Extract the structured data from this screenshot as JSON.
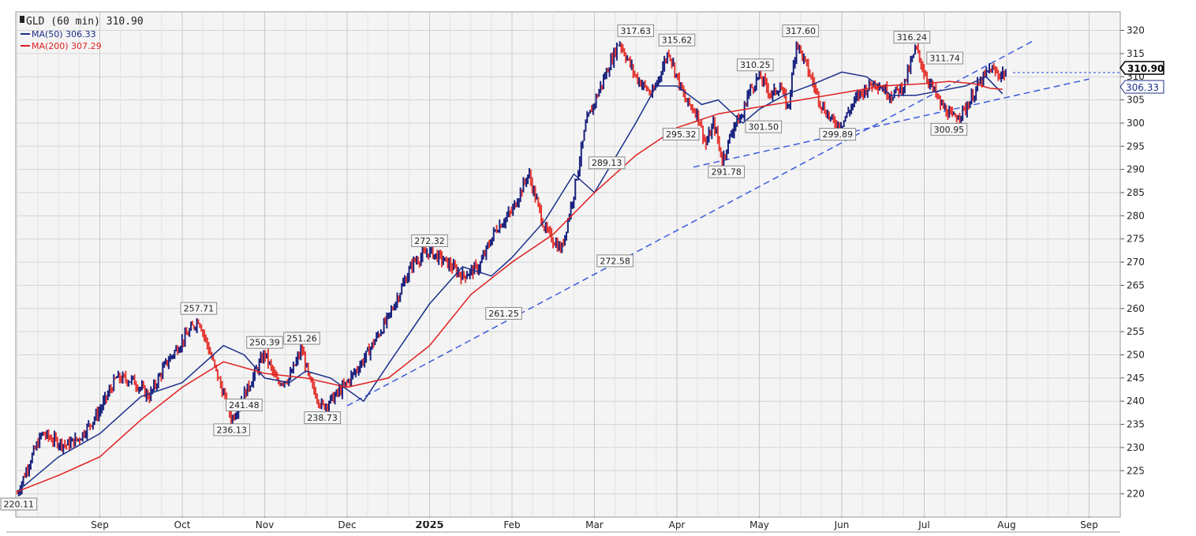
{
  "legend": {
    "title": "GLD (60 min) 310.90",
    "ma50": "MA(50) 306.33",
    "ma200": "MA(200) 307.29"
  },
  "price_box": {
    "last": "310.90",
    "ma": "306.33"
  },
  "colors": {
    "up": "#1a237e",
    "down": "#e53935",
    "ma50": "#1a2f8a",
    "ma200": "#e02020",
    "trend": "#3b5bdb",
    "grid": "#d4d4d4",
    "plot_bg": "#f4f4f4"
  },
  "chart_data": {
    "type": "line",
    "title": "GLD (60 min) 310.90",
    "ylim": [
      215,
      324
    ],
    "y_ticks": [
      220,
      225,
      230,
      235,
      240,
      245,
      250,
      255,
      260,
      265,
      270,
      275,
      280,
      285,
      290,
      295,
      300,
      305,
      310,
      315,
      320
    ],
    "x_ticks": [
      "Sep",
      "Oct",
      "Nov",
      "Dec",
      "2025",
      "Feb",
      "Mar",
      "Apr",
      "May",
      "Jun",
      "Jul",
      "Aug",
      "Sep"
    ],
    "x_tick_time": [
      1,
      2,
      3,
      4,
      5,
      6,
      7,
      8,
      9,
      10,
      11,
      12,
      13
    ],
    "x_range": [
      0.0,
      13.0
    ],
    "grid": true,
    "legend_position": "top-left",
    "price": {
      "x": [
        0.0,
        0.15,
        0.3,
        0.45,
        0.6,
        0.75,
        0.9,
        1.0,
        1.2,
        1.4,
        1.6,
        1.8,
        2.0,
        2.2,
        2.4,
        2.6,
        2.75,
        2.8,
        3.0,
        3.15,
        3.3,
        3.45,
        3.55,
        3.7,
        3.85,
        4.0,
        4.2,
        4.4,
        4.5,
        4.6,
        4.8,
        5.0,
        5.2,
        5.4,
        5.6,
        5.8,
        6.0,
        6.2,
        6.4,
        6.6,
        6.75,
        6.9,
        7.1,
        7.3,
        7.5,
        7.7,
        7.9,
        8.0,
        8.1,
        8.25,
        8.35,
        8.45,
        8.55,
        8.7,
        8.8,
        8.85,
        9.0,
        9.15,
        9.25,
        9.35,
        9.45,
        9.6,
        9.75,
        9.9,
        10.0,
        10.1,
        10.2,
        10.4,
        10.6,
        10.75,
        10.9,
        11.0,
        11.2,
        11.35,
        11.5,
        11.65,
        11.8,
        11.9,
        12.0
      ],
      "y": [
        220.11,
        227.0,
        233.0,
        231.5,
        230.5,
        232.0,
        235.5,
        238.0,
        245.0,
        244.5,
        241.0,
        248.0,
        253.0,
        257.71,
        247.0,
        236.13,
        241.48,
        243.0,
        250.39,
        244.0,
        245.0,
        251.26,
        244.0,
        238.73,
        241.0,
        244.0,
        249.0,
        255.0,
        258.0,
        262.0,
        270.0,
        272.32,
        270.0,
        267.0,
        269.0,
        277.0,
        281.0,
        289.13,
        277.0,
        272.58,
        285.0,
        300.0,
        309.0,
        317.63,
        310.0,
        306.0,
        315.62,
        310.0,
        305.0,
        302.0,
        295.32,
        300.0,
        291.78,
        300.0,
        301.5,
        306.0,
        310.25,
        306.0,
        308.0,
        303.0,
        317.6,
        311.0,
        304.0,
        300.0,
        299.89,
        303.0,
        306.0,
        309.0,
        306.0,
        308.0,
        316.24,
        311.0,
        304.0,
        300.95,
        303.0,
        308.0,
        311.74,
        310.5,
        310.9
      ]
    },
    "series": [
      {
        "name": "MA(50) 306.33",
        "x": [
          0.0,
          0.5,
          1.0,
          1.5,
          2.0,
          2.5,
          2.75,
          3.0,
          3.3,
          3.5,
          3.8,
          4.2,
          4.5,
          5.0,
          5.4,
          5.75,
          6.0,
          6.4,
          6.75,
          7.0,
          7.5,
          7.75,
          8.0,
          8.3,
          8.5,
          8.8,
          9.0,
          9.3,
          9.6,
          10.0,
          10.3,
          10.6,
          10.9,
          11.2,
          11.5,
          11.75,
          11.95
        ],
        "y": [
          220.5,
          228.0,
          233.0,
          241.0,
          244.0,
          252.0,
          250.0,
          245.0,
          244.0,
          246.5,
          245.0,
          240.0,
          248.0,
          261.0,
          269.0,
          267.0,
          271.0,
          279.0,
          289.0,
          285.0,
          300.0,
          308.0,
          308.0,
          304.0,
          305.0,
          300.0,
          303.0,
          306.0,
          308.0,
          311.0,
          310.0,
          306.0,
          306.0,
          307.0,
          308.0,
          310.0,
          306.33
        ]
      },
      {
        "name": "MA(200) 307.29",
        "x": [
          0.0,
          0.5,
          1.0,
          1.5,
          2.0,
          2.5,
          3.0,
          3.5,
          4.0,
          4.5,
          5.0,
          5.5,
          6.0,
          6.5,
          7.0,
          7.5,
          8.0,
          8.5,
          9.0,
          9.5,
          10.0,
          10.5,
          11.0,
          11.3,
          11.6,
          11.8,
          11.95
        ],
        "y": [
          220.5,
          224.0,
          228.0,
          236.0,
          243.0,
          248.5,
          246.0,
          245.0,
          243.0,
          245.0,
          252.0,
          263.0,
          270.0,
          276.0,
          285.0,
          293.0,
          299.0,
          302.0,
          303.5,
          305.0,
          306.5,
          308.0,
          308.5,
          309.0,
          308.5,
          307.5,
          307.29
        ]
      }
    ],
    "trendlines": [
      {
        "x": [
          4.0,
          12.35
        ],
        "y": [
          239.0,
          318.0
        ]
      },
      {
        "x": [
          8.2,
          13.0
        ],
        "y": [
          290.5,
          309.5
        ]
      }
    ],
    "last_price_line": {
      "y": 310.9,
      "x_start": 12.0,
      "x_end": 13.0
    },
    "annotations": [
      {
        "label": "220.11",
        "x": 0.0,
        "y": 220.11,
        "pos": "below"
      },
      {
        "label": "257.71",
        "x": 2.2,
        "y": 257.71,
        "pos": "above"
      },
      {
        "label": "236.13",
        "x": 2.6,
        "y": 236.13,
        "pos": "below"
      },
      {
        "label": "241.48",
        "x": 2.75,
        "y": 241.48,
        "pos": "below"
      },
      {
        "label": "250.39",
        "x": 3.0,
        "y": 250.39,
        "pos": "above"
      },
      {
        "label": "251.26",
        "x": 3.45,
        "y": 251.26,
        "pos": "above"
      },
      {
        "label": "238.73",
        "x": 3.7,
        "y": 238.73,
        "pos": "below"
      },
      {
        "label": "272.32",
        "x": 5.0,
        "y": 272.32,
        "pos": "above"
      },
      {
        "label": "261.25",
        "x": 5.9,
        "y": 261.25,
        "pos": "below"
      },
      {
        "label": "289.13",
        "x": 7.15,
        "y": 289.13,
        "pos": "above"
      },
      {
        "label": "272.58",
        "x": 7.25,
        "y": 272.58,
        "pos": "below"
      },
      {
        "label": "317.63",
        "x": 7.5,
        "y": 317.63,
        "pos": "above"
      },
      {
        "label": "315.62",
        "x": 8.0,
        "y": 315.62,
        "pos": "above"
      },
      {
        "label": "295.32",
        "x": 8.05,
        "y": 295.32,
        "pos": "above"
      },
      {
        "label": "291.78",
        "x": 8.6,
        "y": 291.78,
        "pos": "below"
      },
      {
        "label": "310.25",
        "x": 8.95,
        "y": 310.25,
        "pos": "above"
      },
      {
        "label": "301.50",
        "x": 9.05,
        "y": 301.5,
        "pos": "below"
      },
      {
        "label": "317.60",
        "x": 9.5,
        "y": 317.6,
        "pos": "above"
      },
      {
        "label": "299.89",
        "x": 9.95,
        "y": 299.89,
        "pos": "below"
      },
      {
        "label": "316.24",
        "x": 10.85,
        "y": 316.24,
        "pos": "above"
      },
      {
        "label": "311.74",
        "x": 11.25,
        "y": 311.74,
        "pos": "above"
      },
      {
        "label": "300.95",
        "x": 11.3,
        "y": 300.95,
        "pos": "below"
      }
    ]
  }
}
